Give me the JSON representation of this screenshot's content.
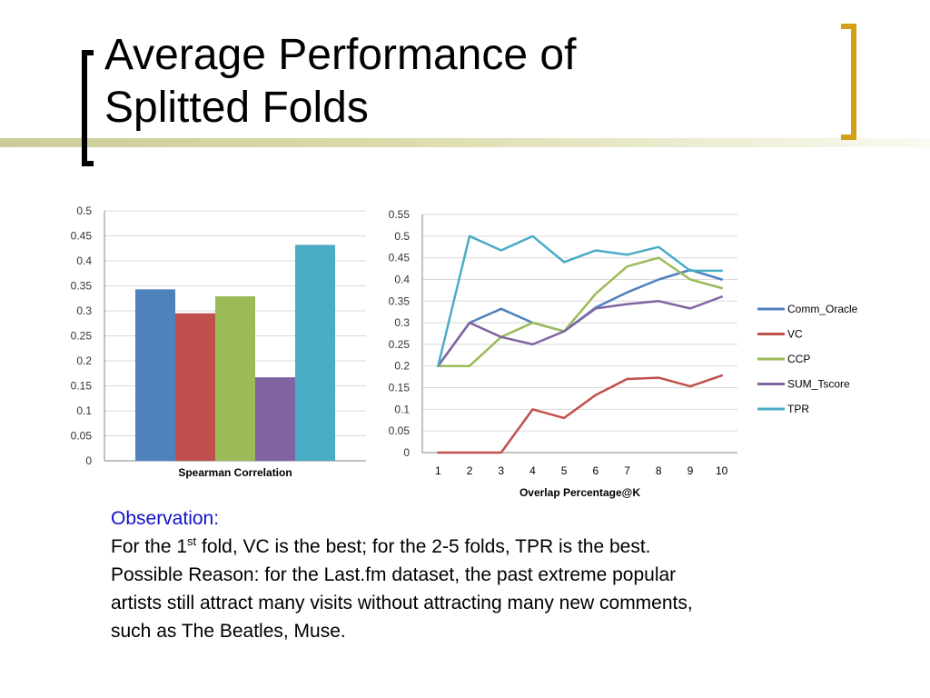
{
  "slide": {
    "title_lines": [
      "Average Performance of",
      "Splitted Folds"
    ],
    "accent_colors": {
      "rule": "#cccc99",
      "right_bracket": "#d4a017",
      "observation_heading": "#1111cc"
    },
    "observation": {
      "heading": "Observation:",
      "line1_before": "For the 1",
      "line1_sup": "st",
      "line1_after": " fold, VC is the best; for the 2-5 folds, TPR is the best.",
      "line2": "Possible Reason: for the Last.fm dataset, the past extreme popular",
      "line3": "artists still attract many visits without attracting many new comments,",
      "line4": "such as The Beatles, Muse."
    }
  },
  "chart_data": [
    {
      "type": "bar",
      "xlabel": "Spearman Correlation",
      "ylim": [
        0,
        0.5
      ],
      "yticks": [
        "0",
        "0.05",
        "0.1",
        "0.15",
        "0.2",
        "0.25",
        "0.3",
        "0.35",
        "0.4",
        "0.45",
        "0.5"
      ],
      "grid": true,
      "series": [
        {
          "value": 0.343,
          "color": "#4f81bd"
        },
        {
          "value": 0.295,
          "color": "#c0504d"
        },
        {
          "value": 0.329,
          "color": "#9bbb59"
        },
        {
          "value": 0.167,
          "color": "#8064a2"
        },
        {
          "value": 0.432,
          "color": "#4bacc6"
        }
      ]
    },
    {
      "type": "line",
      "xlabel": "Overlap Percentage@K",
      "x": [
        1,
        2,
        3,
        4,
        5,
        6,
        7,
        8,
        9,
        10
      ],
      "ylim": [
        0,
        0.55
      ],
      "yticks": [
        "0",
        "0.05",
        "0.1",
        "0.15",
        "0.2",
        "0.25",
        "0.3",
        "0.35",
        "0.4",
        "0.45",
        "0.5",
        "0.55"
      ],
      "grid": true,
      "legend_position": "right",
      "series": [
        {
          "name": "Comm_Oracle",
          "color": "#4f81bd",
          "values": [
            0.2,
            0.3,
            0.332,
            0.3,
            0.28,
            0.335,
            0.37,
            0.4,
            0.422,
            0.4
          ]
        },
        {
          "name": "VC",
          "color": "#c0504d",
          "values": [
            0,
            0,
            0,
            0.1,
            0.08,
            0.133,
            0.17,
            0.173,
            0.153,
            0.178
          ]
        },
        {
          "name": "CCP",
          "color": "#9bbb59",
          "values": [
            0.2,
            0.2,
            0.267,
            0.3,
            0.28,
            0.367,
            0.43,
            0.45,
            0.4,
            0.38
          ]
        },
        {
          "name": "SUM_Tscore",
          "color": "#8064a2",
          "values": [
            0.2,
            0.3,
            0.267,
            0.25,
            0.28,
            0.333,
            0.343,
            0.35,
            0.333,
            0.36
          ]
        },
        {
          "name": "TPR",
          "color": "#4bacc6",
          "values": [
            0.2,
            0.5,
            0.467,
            0.5,
            0.44,
            0.467,
            0.457,
            0.475,
            0.42,
            0.42
          ]
        }
      ]
    }
  ]
}
